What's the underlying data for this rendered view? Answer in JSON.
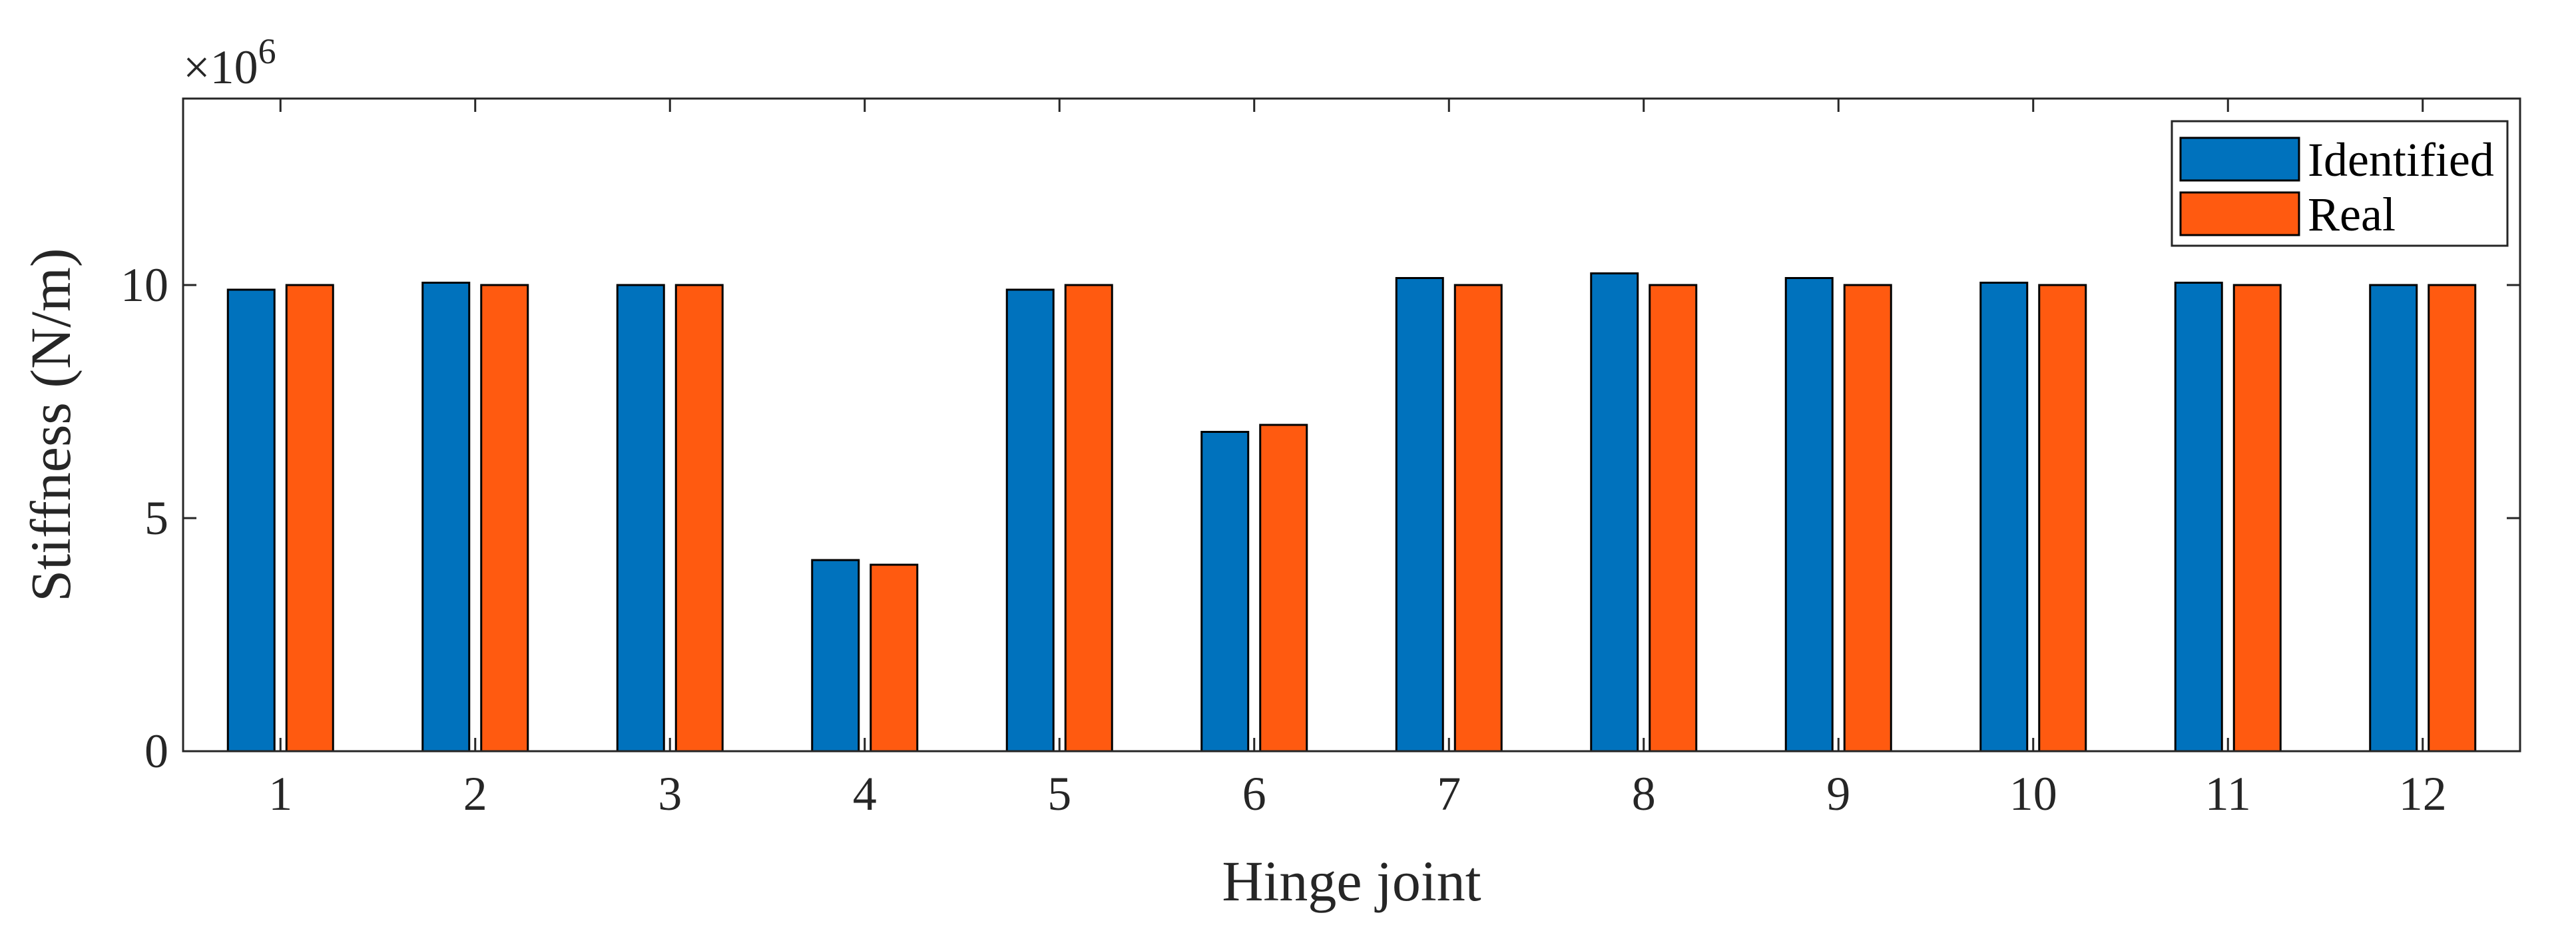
{
  "chart_data": {
    "type": "bar",
    "xlabel": "Hinge joint",
    "ylabel": "Stiffness (N/m)",
    "y_multiplier": "×10",
    "y_multiplier_exponent": "6",
    "ylim": [
      0,
      14
    ],
    "yticks": [
      0,
      5,
      10
    ],
    "ytick_labels": [
      "0",
      "5",
      "10"
    ],
    "categories": [
      "1",
      "2",
      "3",
      "4",
      "5",
      "6",
      "7",
      "8",
      "9",
      "10",
      "11",
      "12"
    ],
    "series": [
      {
        "name": "Identified",
        "color": "#0072BD",
        "values": [
          9.9,
          10.05,
          10.0,
          4.1,
          9.9,
          6.85,
          10.15,
          10.25,
          10.15,
          10.05,
          10.05,
          10.0
        ]
      },
      {
        "name": "Real",
        "color": "#FF5A10",
        "values": [
          10.0,
          10.0,
          10.0,
          4.0,
          10.0,
          7.0,
          10.0,
          10.0,
          10.0,
          10.0,
          10.0,
          10.0
        ]
      }
    ],
    "legend_position": "top-right",
    "grid": false,
    "box": true
  }
}
